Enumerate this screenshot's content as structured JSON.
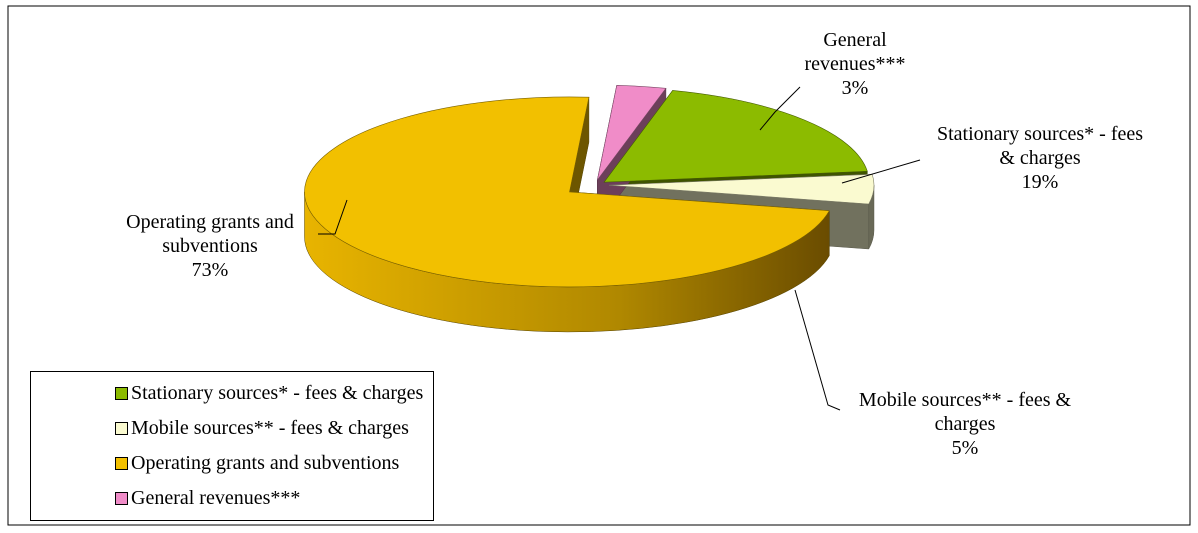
{
  "chart_data": {
    "type": "pie",
    "categories": [
      "Stationary sources* - fees & charges",
      "Mobile sources** - fees & charges",
      "Operating grants and subventions",
      "General revenues***"
    ],
    "values": [
      19,
      5,
      73,
      3
    ],
    "value_labels": [
      "19%",
      "5%",
      "73%",
      "3%"
    ],
    "colors": [
      "#8cbb00",
      "#fafad0",
      "#f2c000",
      "#f08cc8"
    ],
    "legend": "bottom-left"
  }
}
